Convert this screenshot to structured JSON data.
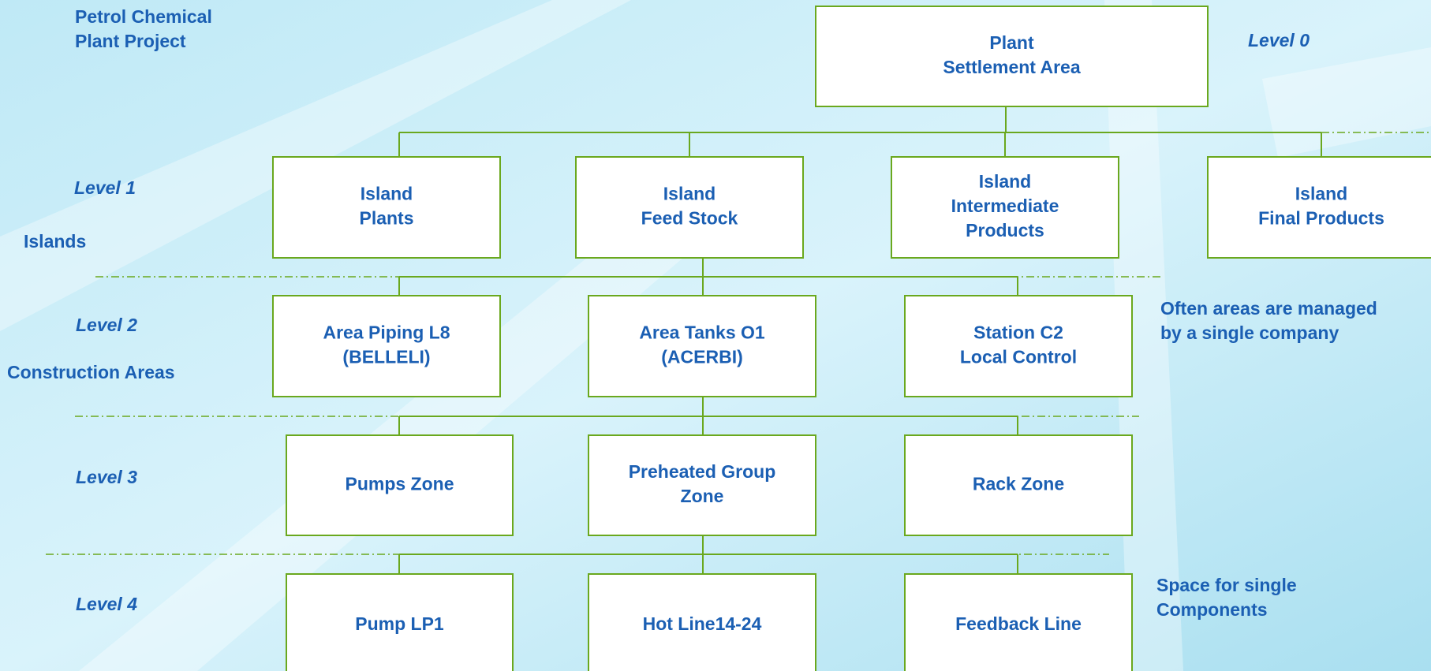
{
  "header": {
    "title": [
      "Petrol Chemical",
      "Plant Project"
    ]
  },
  "levels": [
    {
      "label": "Level 0"
    },
    {
      "label": "Level 1",
      "caption": "Islands"
    },
    {
      "label": "Level 2",
      "caption": "Construction Areas"
    },
    {
      "label": "Level 3"
    },
    {
      "label": "Level 4"
    }
  ],
  "nodes": [
    {
      "label": [
        "Plant",
        "Settlement Area"
      ]
    },
    {
      "label": [
        "Island",
        "Plants"
      ]
    },
    {
      "label": [
        "Island",
        "Feed Stock"
      ]
    },
    {
      "label": [
        "Island",
        "Intermediate",
        "Products"
      ]
    },
    {
      "label": [
        "Island",
        "Final Products"
      ]
    },
    {
      "label": [
        "Area Piping L8",
        "(BELLELI)"
      ]
    },
    {
      "label": [
        "Area Tanks O1",
        "(ACERBI)"
      ]
    },
    {
      "label": [
        "Station C2",
        "Local Control"
      ]
    },
    {
      "label": [
        "Pumps Zone"
      ]
    },
    {
      "label": [
        "Preheated Group",
        "Zone"
      ]
    },
    {
      "label": [
        "Rack Zone"
      ]
    },
    {
      "label": [
        "Pump LP1"
      ]
    },
    {
      "label": [
        "Hot Line14-24"
      ]
    },
    {
      "label": [
        "Feedback Line"
      ]
    }
  ],
  "notes": [
    {
      "text": [
        "Often areas are managed",
        "by a single company"
      ]
    },
    {
      "text": [
        "Space for single",
        "Components"
      ]
    }
  ]
}
